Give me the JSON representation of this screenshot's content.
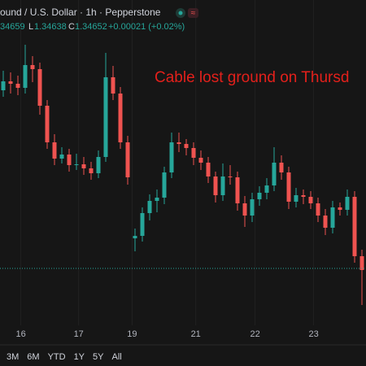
{
  "header": {
    "symbol": "ound / U.S. Dollar · 1h · Pepperstone",
    "high_value": "34659",
    "low_label": "L",
    "low_value": "1.34638",
    "close_label": "C",
    "close_value": "1.34652",
    "change": "+0.00021 (+0.02%)"
  },
  "chart_data": {
    "type": "candlestick",
    "annotation": "Cable lost ground on Thursd",
    "categories": [
      null,
      null,
      null,
      null,
      null,
      null,
      null,
      null,
      null,
      null,
      null,
      null,
      null,
      null,
      null,
      null,
      null,
      null,
      null,
      null,
      null,
      null,
      null,
      null,
      null,
      null,
      null,
      null,
      null,
      null,
      null,
      null,
      null,
      null,
      null,
      null,
      null,
      null,
      null,
      null,
      null,
      null,
      null,
      null,
      null,
      null,
      null,
      null,
      null,
      null
    ],
    "open": [
      1.3577,
      1.35825,
      1.3581,
      1.35785,
      1.35925,
      1.359,
      1.35675,
      1.3545,
      1.3535,
      1.35375,
      1.3531,
      1.35315,
      1.3529,
      1.3526,
      1.3536,
      1.3585,
      1.3575,
      1.3545,
      1.3486,
      1.34875,
      1.35015,
      1.3509,
      1.3511,
      1.35265,
      1.3545,
      1.3544,
      1.35415,
      1.35355,
      1.35325,
      1.3524,
      1.35125,
      1.3524,
      1.35235,
      1.35075,
      1.35,
      1.351,
      1.3514,
      1.35185,
      1.35325,
      1.35265,
      1.35085,
      1.35125,
      1.35115,
      1.35075,
      1.35,
      1.34925,
      1.3505,
      1.35035,
      1.35115,
      1.3475
    ],
    "high": [
      1.3589,
      1.3588,
      1.3586,
      1.3605,
      1.3598,
      1.3594,
      1.3571,
      1.355,
      1.3542,
      1.3541,
      1.3538,
      1.3536,
      1.3533,
      1.354,
      1.36,
      1.3592,
      1.3579,
      1.3549,
      1.3492,
      1.3505,
      1.3513,
      1.3516,
      1.353,
      1.3551,
      1.3551,
      1.3547,
      1.3545,
      1.354,
      1.3536,
      1.3527,
      1.3532,
      1.3531,
      1.3527,
      1.3512,
      1.3514,
      1.3518,
      1.3523,
      1.3542,
      1.3537,
      1.353,
      1.3517,
      1.3516,
      1.3515,
      1.3511,
      1.3504,
      1.3509,
      1.3508,
      1.3516,
      1.3515,
      1.3479
    ],
    "low": [
      1.3573,
      1.3575,
      1.3574,
      1.3575,
      1.3582,
      1.3562,
      1.3541,
      1.3531,
      1.3532,
      1.3527,
      1.3528,
      1.3525,
      1.3522,
      1.3523,
      1.3533,
      1.3571,
      1.3541,
      1.3519,
      1.3478,
      1.3484,
      1.3497,
      1.3502,
      1.3507,
      1.3523,
      1.3539,
      1.3537,
      1.3531,
      1.3528,
      1.352,
      1.3508,
      1.3509,
      1.3519,
      1.3503,
      1.3493,
      1.3496,
      1.3506,
      1.351,
      1.3515,
      1.3522,
      1.3504,
      1.3505,
      1.3507,
      1.3504,
      1.3496,
      1.3488,
      1.3489,
      1.35,
      1.35,
      1.3471,
      1.3445
    ],
    "close": [
      1.35825,
      1.3581,
      1.35785,
      1.35925,
      1.359,
      1.35675,
      1.3545,
      1.3535,
      1.35375,
      1.3531,
      1.35315,
      1.3529,
      1.3526,
      1.3536,
      1.3585,
      1.3575,
      1.3545,
      1.35235,
      1.34875,
      1.35015,
      1.3509,
      1.3511,
      1.35265,
      1.3545,
      1.3544,
      1.35415,
      1.35355,
      1.35325,
      1.3524,
      1.35125,
      1.3524,
      1.35235,
      1.35075,
      1.35,
      1.351,
      1.3514,
      1.35185,
      1.35325,
      1.35265,
      1.35085,
      1.35125,
      1.35115,
      1.35075,
      1.35,
      1.34925,
      1.3505,
      1.35035,
      1.35115,
      1.3475,
      1.34665
    ],
    "up_color": "#26a69a",
    "down_color": "#ef5350",
    "price_line": 1.34675,
    "ylim": [
      1.3435,
      1.36175
    ],
    "xticks": [
      {
        "value": 2.4,
        "label": "16"
      },
      {
        "value": 10.3,
        "label": "17"
      },
      {
        "value": 17.6,
        "label": "19"
      },
      {
        "value": 26.3,
        "label": "21"
      },
      {
        "value": 34.4,
        "label": "22"
      },
      {
        "value": 42.4,
        "label": "23"
      }
    ],
    "grid": true
  },
  "toolbar": [
    "3M",
    "6M",
    "YTD",
    "1Y",
    "5Y",
    "All"
  ]
}
